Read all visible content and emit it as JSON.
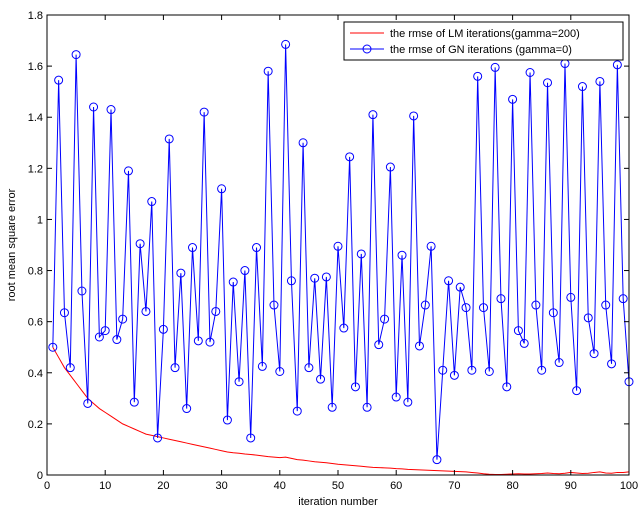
{
  "chart_data": {
    "type": "line",
    "title": "",
    "xlabel": "iteration number",
    "ylabel": "root mean square error",
    "xlim": [
      0,
      100
    ],
    "ylim": [
      0,
      1.8
    ],
    "xticks": [
      0,
      10,
      20,
      30,
      40,
      50,
      60,
      70,
      80,
      90,
      100
    ],
    "xtick_labels": [
      "0",
      "10",
      "20",
      "30",
      "40",
      "50",
      "60",
      "70",
      "80",
      "90",
      "100"
    ],
    "yticks": [
      0,
      0.2,
      0.4,
      0.6,
      0.8,
      1,
      1.2,
      1.4,
      1.6,
      1.8
    ],
    "ytick_labels": [
      "0",
      "0.2",
      "0.4",
      "0.6",
      "0.8",
      "1",
      "1.2",
      "1.4",
      "1.6",
      "1.8"
    ],
    "grid": false,
    "legend_position": "top-right",
    "series": [
      {
        "name": "the rmse of LM iterations(gamma=200)",
        "color": "#ff0000",
        "marker": "none",
        "x": [
          1,
          2,
          3,
          4,
          5,
          6,
          7,
          8,
          9,
          10,
          11,
          12,
          13,
          14,
          15,
          16,
          17,
          18,
          19,
          20,
          21,
          22,
          23,
          24,
          25,
          26,
          27,
          28,
          29,
          30,
          31,
          32,
          33,
          34,
          35,
          36,
          37,
          38,
          39,
          40,
          41,
          42,
          43,
          44,
          45,
          46,
          47,
          48,
          49,
          50,
          51,
          52,
          53,
          54,
          55,
          56,
          57,
          58,
          59,
          60,
          61,
          62,
          63,
          64,
          65,
          66,
          67,
          68,
          69,
          70,
          71,
          72,
          73,
          74,
          75,
          76,
          77,
          78,
          79,
          80,
          81,
          82,
          83,
          84,
          85,
          86,
          87,
          88,
          89,
          90,
          91,
          92,
          93,
          94,
          95,
          96,
          97,
          98,
          99,
          100
        ],
        "y": [
          0.5,
          0.46,
          0.42,
          0.39,
          0.36,
          0.33,
          0.3,
          0.28,
          0.26,
          0.245,
          0.23,
          0.215,
          0.2,
          0.19,
          0.18,
          0.17,
          0.16,
          0.155,
          0.15,
          0.145,
          0.14,
          0.135,
          0.13,
          0.125,
          0.12,
          0.115,
          0.11,
          0.105,
          0.1,
          0.095,
          0.09,
          0.087,
          0.085,
          0.082,
          0.08,
          0.078,
          0.075,
          0.072,
          0.07,
          0.068,
          0.07,
          0.065,
          0.06,
          0.058,
          0.055,
          0.052,
          0.05,
          0.048,
          0.045,
          0.042,
          0.04,
          0.038,
          0.036,
          0.034,
          0.032,
          0.03,
          0.029,
          0.028,
          0.027,
          0.025,
          0.024,
          0.022,
          0.021,
          0.02,
          0.019,
          0.018,
          0.017,
          0.016,
          0.015,
          0.014,
          0.013,
          0.012,
          0.01,
          0.008,
          0.005,
          0.003,
          0.002,
          0.002,
          0.003,
          0.004,
          0.005,
          0.004,
          0.004,
          0.005,
          0.006,
          0.008,
          0.006,
          0.005,
          0.007,
          0.01,
          0.008,
          0.006,
          0.007,
          0.01,
          0.012,
          0.008,
          0.007,
          0.01,
          0.01,
          0.012
        ]
      },
      {
        "name": "the rmse of GN iterations (gamma=0)",
        "color": "#0000ff",
        "marker": "circle",
        "x": [
          1,
          2,
          3,
          4,
          5,
          6,
          7,
          8,
          9,
          10,
          11,
          12,
          13,
          14,
          15,
          16,
          17,
          18,
          19,
          20,
          21,
          22,
          23,
          24,
          25,
          26,
          27,
          28,
          29,
          30,
          31,
          32,
          33,
          34,
          35,
          36,
          37,
          38,
          39,
          40,
          41,
          42,
          43,
          44,
          45,
          46,
          47,
          48,
          49,
          50,
          51,
          52,
          53,
          54,
          55,
          56,
          57,
          58,
          59,
          60,
          61,
          62,
          63,
          64,
          65,
          66,
          67,
          68,
          69,
          70,
          71,
          72,
          73,
          74,
          75,
          76,
          77,
          78,
          79,
          80,
          81,
          82,
          83,
          84,
          85,
          86,
          87,
          88,
          89,
          90,
          91,
          92,
          93,
          94,
          95,
          96,
          97,
          98,
          99,
          100
        ],
        "y": [
          0.5,
          1.545,
          0.635,
          0.42,
          1.645,
          0.72,
          0.28,
          1.44,
          0.54,
          0.565,
          1.43,
          0.53,
          0.61,
          1.19,
          0.285,
          0.905,
          0.64,
          1.07,
          0.145,
          0.57,
          1.315,
          0.42,
          0.79,
          0.26,
          0.89,
          0.525,
          1.42,
          0.52,
          0.64,
          1.12,
          0.215,
          0.755,
          0.365,
          0.8,
          0.145,
          0.89,
          0.425,
          1.58,
          0.665,
          0.405,
          1.685,
          0.76,
          0.25,
          1.3,
          0.42,
          0.77,
          0.375,
          0.775,
          0.265,
          0.895,
          0.575,
          1.245,
          0.345,
          0.865,
          0.265,
          1.41,
          0.51,
          0.61,
          1.205,
          0.305,
          0.86,
          0.285,
          1.405,
          0.505,
          0.665,
          0.895,
          0.06,
          0.41,
          0.76,
          0.39,
          0.735,
          0.655,
          0.41,
          1.56,
          0.655,
          0.405,
          1.595,
          0.69,
          0.345,
          1.47,
          0.565,
          0.515,
          1.575,
          0.665,
          0.41,
          1.535,
          0.635,
          0.44,
          1.61,
          0.695,
          0.33,
          1.52,
          0.615,
          0.475,
          1.54,
          0.665,
          0.435,
          1.605,
          0.69,
          0.365
        ]
      }
    ]
  }
}
